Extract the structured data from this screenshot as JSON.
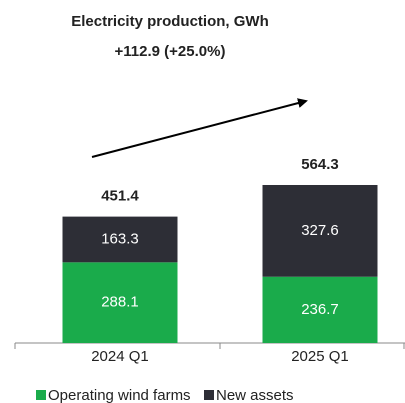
{
  "chart_data": {
    "type": "stacked_bar",
    "title": "Electricity production, GWh",
    "subtitle": "+112.9 (+25.0%)",
    "categories": [
      "2024 Q1",
      "2025 Q1"
    ],
    "series": [
      {
        "name": "Operating wind farms",
        "color": "#1aab4b",
        "values": [
          288.1,
          236.7
        ]
      },
      {
        "name": "New assets",
        "color": "#2d2e36",
        "values": [
          163.3,
          327.6
        ]
      }
    ],
    "totals": [
      451.4,
      564.3
    ],
    "ylim": [
      0,
      600
    ]
  }
}
